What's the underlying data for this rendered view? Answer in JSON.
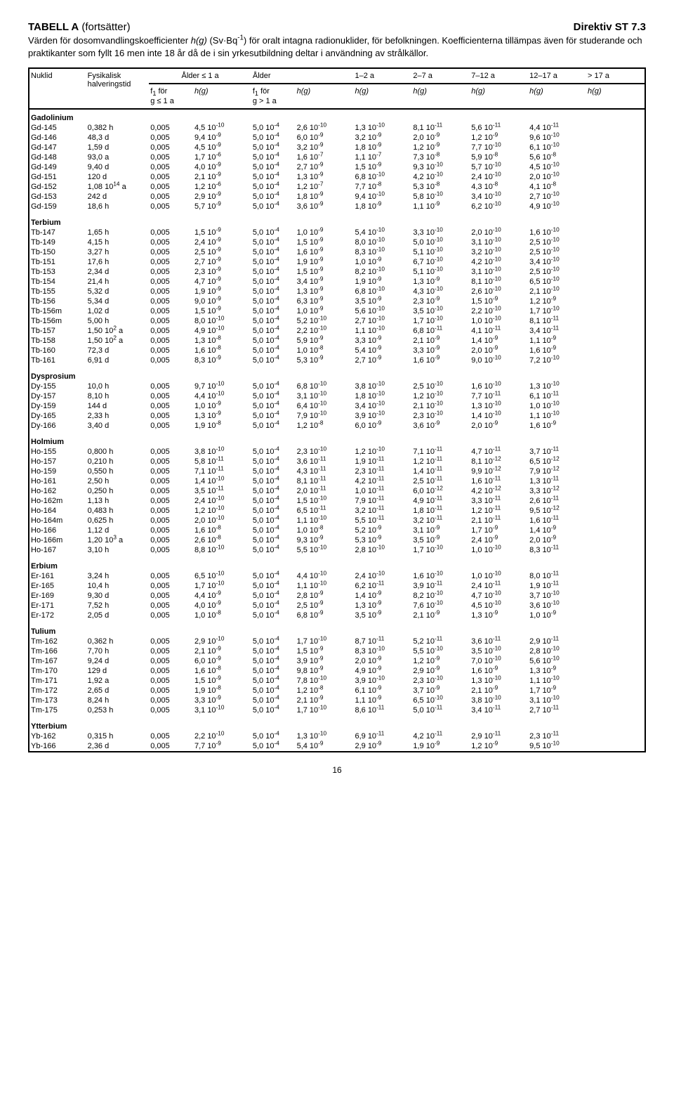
{
  "header": {
    "title_left_html": "<b>TABELL A</b> (fortsätter)",
    "title_right": "Direktiv ST 7.3",
    "intro_html": "Värden för dosomvandlingskoefficienter <i>h(g)</i> (Sv·Bq<sup>-1</sup>) för oralt intagna radionuklider, för befolkningen. Koefficienterna tillämpas även för studerande och praktikanter som fyllt 16 men inte 18 år då de i sin yrkesutbildning deltar i användning av strålkällor."
  },
  "table": {
    "head": {
      "nuklid": "Nuklid",
      "halflife_html": "Fysikalisk<br>halveringstid",
      "age_le1": "Ålder ≤ 1 a",
      "age_gt1": "Ålder",
      "r12": "1–2 a",
      "r27": "2–7 a",
      "r712": "7–12 a",
      "r1217": "12–17 a",
      "rgt17": "> 17 a",
      "f1_le1_html": "f<sub>1</sub> för<br>g ≤ 1 a",
      "f1_gt1_html": "f<sub>1</sub> för<br>g > 1 a",
      "hg_html": "<i>h(g)</i>"
    },
    "groups": [
      {
        "name": "Gadolinium",
        "rows": [
          [
            "Gd-145",
            "0,382 h",
            "0,005",
            "4,5 10<sup>-10</sup>",
            "5,0 10<sup>-4</sup>",
            "2,6 10<sup>-10</sup>",
            "1,3 10<sup>-10</sup>",
            "8,1 10<sup>-11</sup>",
            "5,6 10<sup>-11</sup>",
            "4,4 10<sup>-11</sup>"
          ],
          [
            "Gd-146",
            "48,3 d",
            "0,005",
            "9,4 10<sup>-9</sup>",
            "5,0 10<sup>-4</sup>",
            "6,0 10<sup>-9</sup>",
            "3,2 10<sup>-9</sup>",
            "2,0 10<sup>-9</sup>",
            "1,2 10<sup>-9</sup>",
            "9,6 10<sup>-10</sup>"
          ],
          [
            "Gd-147",
            "1,59 d",
            "0,005",
            "4,5 10<sup>-9</sup>",
            "5,0 10<sup>-4</sup>",
            "3,2 10<sup>-9</sup>",
            "1,8 10<sup>-9</sup>",
            "1,2 10<sup>-9</sup>",
            "7,7 10<sup>-10</sup>",
            "6,1 10<sup>-10</sup>"
          ],
          [
            "Gd-148",
            "93,0 a",
            "0,005",
            "1,7 10<sup>-6</sup>",
            "5,0 10<sup>-4</sup>",
            "1,6 10<sup>-7</sup>",
            "1,1 10<sup>-7</sup>",
            "7,3 10<sup>-8</sup>",
            "5,9 10<sup>-8</sup>",
            "5,6 10<sup>-8</sup>"
          ],
          [
            "Gd-149",
            "9,40 d",
            "0,005",
            "4,0 10<sup>-9</sup>",
            "5,0 10<sup>-4</sup>",
            "2,7 10<sup>-9</sup>",
            "1,5 10<sup>-9</sup>",
            "9,3 10<sup>-10</sup>",
            "5,7 10<sup>-10</sup>",
            "4,5 10<sup>-10</sup>"
          ],
          [
            "Gd-151",
            "120 d",
            "0,005",
            "2,1 10<sup>-9</sup>",
            "5,0 10<sup>-4</sup>",
            "1,3 10<sup>-9</sup>",
            "6,8 10<sup>-10</sup>",
            "4,2 10<sup>-10</sup>",
            "2,4 10<sup>-10</sup>",
            "2,0 10<sup>-10</sup>"
          ],
          [
            "Gd-152",
            "1,08 10<sup>14</sup> a",
            "0,005",
            "1,2 10<sup>-6</sup>",
            "5,0 10<sup>-4</sup>",
            "1,2 10<sup>-7</sup>",
            "7,7 10<sup>-8</sup>",
            "5,3 10<sup>-8</sup>",
            "4,3 10<sup>-8</sup>",
            "4,1 10<sup>-8</sup>"
          ],
          [
            "Gd-153",
            "242 d",
            "0,005",
            "2,9 10<sup>-9</sup>",
            "5,0 10<sup>-4</sup>",
            "1,8 10<sup>-9</sup>",
            "9,4 10<sup>-10</sup>",
            "5,8 10<sup>-10</sup>",
            "3,4 10<sup>-10</sup>",
            "2,7 10<sup>-10</sup>"
          ],
          [
            "Gd-159",
            "18,6 h",
            "0,005",
            "5,7 10<sup>-9</sup>",
            "5,0 10<sup>-4</sup>",
            "3,6 10<sup>-9</sup>",
            "1,8 10<sup>-9</sup>",
            "1,1 10<sup>-9</sup>",
            "6,2 10<sup>-10</sup>",
            "4,9 10<sup>-10</sup>"
          ]
        ]
      },
      {
        "name": "Terbium",
        "rows": [
          [
            "Tb-147",
            "1,65 h",
            "0,005",
            "1,5 10<sup>-9</sup>",
            "5,0 10<sup>-4</sup>",
            "1,0 10<sup>-9</sup>",
            "5,4 10<sup>-10</sup>",
            "3,3 10<sup>-10</sup>",
            "2,0 10<sup>-10</sup>",
            "1,6 10<sup>-10</sup>"
          ],
          [
            "Tb-149",
            "4,15 h",
            "0,005",
            "2,4 10<sup>-9</sup>",
            "5,0 10<sup>-4</sup>",
            "1,5 10<sup>-9</sup>",
            "8,0 10<sup>-10</sup>",
            "5,0 10<sup>-10</sup>",
            "3,1 10<sup>-10</sup>",
            "2,5 10<sup>-10</sup>"
          ],
          [
            "Tb-150",
            "3,27 h",
            "0,005",
            "2,5 10<sup>-9</sup>",
            "5,0 10<sup>-4</sup>",
            "1,6 10<sup>-9</sup>",
            "8,3 10<sup>-10</sup>",
            "5,1 10<sup>-10</sup>",
            "3,2 10<sup>-10</sup>",
            "2,5 10<sup>-10</sup>"
          ],
          [
            "Tb-151",
            "17,6 h",
            "0,005",
            "2,7 10<sup>-9</sup>",
            "5,0 10<sup>-4</sup>",
            "1,9 10<sup>-9</sup>",
            "1,0 10<sup>-9</sup>",
            "6,7 10<sup>-10</sup>",
            "4,2 10<sup>-10</sup>",
            "3,4 10<sup>-10</sup>"
          ],
          [
            "Tb-153",
            "2,34 d",
            "0,005",
            "2,3 10<sup>-9</sup>",
            "5,0 10<sup>-4</sup>",
            "1,5 10<sup>-9</sup>",
            "8,2 10<sup>-10</sup>",
            "5,1 10<sup>-10</sup>",
            "3,1 10<sup>-10</sup>",
            "2,5 10<sup>-10</sup>"
          ],
          [
            "Tb-154",
            "21,4 h",
            "0,005",
            "4,7 10<sup>-9</sup>",
            "5,0 10<sup>-4</sup>",
            "3,4 10<sup>-9</sup>",
            "1,9 10<sup>-9</sup>",
            "1,3 10<sup>-9</sup>",
            "8,1 10<sup>-10</sup>",
            "6,5 10<sup>-10</sup>"
          ],
          [
            "Tb-155",
            "5,32 d",
            "0,005",
            "1,9 10<sup>-9</sup>",
            "5,0 10<sup>-4</sup>",
            "1,3 10<sup>-9</sup>",
            "6,8 10<sup>-10</sup>",
            "4,3 10<sup>-10</sup>",
            "2,6 10<sup>-10</sup>",
            "2,1 10<sup>-10</sup>"
          ],
          [
            "Tb-156",
            "5,34 d",
            "0,005",
            "9,0 10<sup>-9</sup>",
            "5,0 10<sup>-4</sup>",
            "6,3 10<sup>-9</sup>",
            "3,5 10<sup>-9</sup>",
            "2,3 10<sup>-9</sup>",
            "1,5 10<sup>-9</sup>",
            "1,2 10<sup>-9</sup>"
          ],
          [
            "Tb-156m",
            "1,02 d",
            "0,005",
            "1,5 10<sup>-9</sup>",
            "5,0 10<sup>-4</sup>",
            "1,0 10<sup>-9</sup>",
            "5,6 10<sup>-10</sup>",
            "3,5 10<sup>-10</sup>",
            "2,2 10<sup>-10</sup>",
            "1,7 10<sup>-10</sup>"
          ],
          [
            "Tb-156m",
            "5,00 h",
            "0,005",
            "8,0 10<sup>-10</sup>",
            "5,0 10<sup>-4</sup>",
            "5,2 10<sup>-10</sup>",
            "2,7 10<sup>-10</sup>",
            "1,7 10<sup>-10</sup>",
            "1,0 10<sup>-10</sup>",
            "8,1 10<sup>-11</sup>"
          ],
          [
            "Tb-157",
            "1,50 10<sup>2</sup> a",
            "0,005",
            "4,9 10<sup>-10</sup>",
            "5,0 10<sup>-4</sup>",
            "2,2 10<sup>-10</sup>",
            "1,1 10<sup>-10</sup>",
            "6,8 10<sup>-11</sup>",
            "4,1 10<sup>-11</sup>",
            "3,4 10<sup>-11</sup>"
          ],
          [
            "Tb-158",
            "1,50 10<sup>2</sup> a",
            "0,005",
            "1,3 10<sup>-8</sup>",
            "5,0 10<sup>-4</sup>",
            "5,9 10<sup>-9</sup>",
            "3,3 10<sup>-9</sup>",
            "2,1 10<sup>-9</sup>",
            "1,4 10<sup>-9</sup>",
            "1,1 10<sup>-9</sup>"
          ],
          [
            "Tb-160",
            "72,3 d",
            "0,005",
            "1,6 10<sup>-8</sup>",
            "5,0 10<sup>-4</sup>",
            "1,0 10<sup>-8</sup>",
            "5,4 10<sup>-9</sup>",
            "3,3 10<sup>-9</sup>",
            "2,0 10<sup>-9</sup>",
            "1,6 10<sup>-9</sup>"
          ],
          [
            "Tb-161",
            "6,91 d",
            "0,005",
            "8,3 10<sup>-9</sup>",
            "5,0 10<sup>-4</sup>",
            "5,3 10<sup>-9</sup>",
            "2,7 10<sup>-9</sup>",
            "1,6 10<sup>-9</sup>",
            "9,0 10<sup>-10</sup>",
            "7,2 10<sup>-10</sup>"
          ]
        ]
      },
      {
        "name": "Dysprosium",
        "rows": [
          [
            "Dy-155",
            "10,0 h",
            "0,005",
            "9,7 10<sup>-10</sup>",
            "5,0 10<sup>-4</sup>",
            "6,8 10<sup>-10</sup>",
            "3,8 10<sup>-10</sup>",
            "2,5 10<sup>-10</sup>",
            "1,6 10<sup>-10</sup>",
            "1,3 10<sup>-10</sup>"
          ],
          [
            "Dy-157",
            "8,10 h",
            "0,005",
            "4,4 10<sup>-10</sup>",
            "5,0 10<sup>-4</sup>",
            "3,1 10<sup>-10</sup>",
            "1,8 10<sup>-10</sup>",
            "1,2 10<sup>-10</sup>",
            "7,7 10<sup>-11</sup>",
            "6,1 10<sup>-11</sup>"
          ],
          [
            "Dy-159",
            "144 d",
            "0,005",
            "1,0 10<sup>-9</sup>",
            "5,0 10<sup>-4</sup>",
            "6,4 10<sup>-10</sup>",
            "3,4 10<sup>-10</sup>",
            "2,1 10<sup>-10</sup>",
            "1,3 10<sup>-10</sup>",
            "1,0 10<sup>-10</sup>"
          ],
          [
            "Dy-165",
            "2,33 h",
            "0,005",
            "1,3 10<sup>-9</sup>",
            "5,0 10<sup>-4</sup>",
            "7,9 10<sup>-10</sup>",
            "3,9 10<sup>-10</sup>",
            "2,3 10<sup>-10</sup>",
            "1,4 10<sup>-10</sup>",
            "1,1 10<sup>-10</sup>"
          ],
          [
            "Dy-166",
            "3,40 d",
            "0,005",
            "1,9 10<sup>-8</sup>",
            "5,0 10<sup>-4</sup>",
            "1,2 10<sup>-8</sup>",
            "6,0 10<sup>-9</sup>",
            "3,6 10<sup>-9</sup>",
            "2,0 10<sup>-9</sup>",
            "1,6 10<sup>-9</sup>"
          ]
        ]
      },
      {
        "name": "Holmium",
        "rows": [
          [
            "Ho-155",
            "0,800 h",
            "0,005",
            "3,8 10<sup>-10</sup>",
            "5,0 10<sup>-4</sup>",
            "2,3 10<sup>-10</sup>",
            "1,2 10<sup>-10</sup>",
            "7,1 10<sup>-11</sup>",
            "4,7 10<sup>-11</sup>",
            "3,7 10<sup>-11</sup>"
          ],
          [
            "Ho-157",
            "0,210 h",
            "0,005",
            "5,8 10<sup>-11</sup>",
            "5,0 10<sup>-4</sup>",
            "3,6 10<sup>-11</sup>",
            "1,9 10<sup>-11</sup>",
            "1,2 10<sup>-11</sup>",
            "8,1 10<sup>-12</sup>",
            "6,5 10<sup>-12</sup>"
          ],
          [
            "Ho-159",
            "0,550 h",
            "0,005",
            "7,1 10<sup>-11</sup>",
            "5,0 10<sup>-4</sup>",
            "4,3 10<sup>-11</sup>",
            "2,3 10<sup>-11</sup>",
            "1,4 10<sup>-11</sup>",
            "9,9 10<sup>-12</sup>",
            "7,9 10<sup>-12</sup>"
          ],
          [
            "Ho-161",
            "2,50 h",
            "0,005",
            "1,4 10<sup>-10</sup>",
            "5,0 10<sup>-4</sup>",
            "8,1 10<sup>-11</sup>",
            "4,2 10<sup>-11</sup>",
            "2,5 10<sup>-11</sup>",
            "1,6 10<sup>-11</sup>",
            "1,3 10<sup>-11</sup>"
          ],
          [
            "Ho-162",
            "0,250 h",
            "0,005",
            "3,5 10<sup>-11</sup>",
            "5,0 10<sup>-4</sup>",
            "2,0 10<sup>-11</sup>",
            "1,0 10<sup>-11</sup>",
            "6,0 10<sup>-12</sup>",
            "4,2 10<sup>-12</sup>",
            "3,3 10<sup>-12</sup>"
          ],
          [
            "Ho-162m",
            "1,13 h",
            "0,005",
            "2,4 10<sup>-10</sup>",
            "5,0 10<sup>-4</sup>",
            "1,5 10<sup>-10</sup>",
            "7,9 10<sup>-11</sup>",
            "4,9 10<sup>-11</sup>",
            "3,3 10<sup>-11</sup>",
            "2,6 10<sup>-11</sup>"
          ],
          [
            "Ho-164",
            "0,483 h",
            "0,005",
            "1,2 10<sup>-10</sup>",
            "5,0 10<sup>-4</sup>",
            "6,5 10<sup>-11</sup>",
            "3,2 10<sup>-11</sup>",
            "1,8 10<sup>-11</sup>",
            "1,2 10<sup>-11</sup>",
            "9,5 10<sup>-12</sup>"
          ],
          [
            "Ho-164m",
            "0,625 h",
            "0,005",
            "2,0 10<sup>-10</sup>",
            "5,0 10<sup>-4</sup>",
            "1,1 10<sup>-10</sup>",
            "5,5 10<sup>-11</sup>",
            "3,2 10<sup>-11</sup>",
            "2,1 10<sup>-11</sup>",
            "1,6 10<sup>-11</sup>"
          ],
          [
            "Ho-166",
            "1,12 d",
            "0,005",
            "1,6 10<sup>-8</sup>",
            "5,0 10<sup>-4</sup>",
            "1,0 10<sup>-8</sup>",
            "5,2 10<sup>-9</sup>",
            "3,1 10<sup>-9</sup>",
            "1,7 10<sup>-9</sup>",
            "1,4 10<sup>-9</sup>"
          ],
          [
            "Ho-166m",
            "1,20 10<sup>3</sup> a",
            "0,005",
            "2,6 10<sup>-8</sup>",
            "5,0 10<sup>-4</sup>",
            "9,3 10<sup>-9</sup>",
            "5,3 10<sup>-9</sup>",
            "3,5 10<sup>-9</sup>",
            "2,4 10<sup>-9</sup>",
            "2,0 10<sup>-9</sup>"
          ],
          [
            "Ho-167",
            "3,10 h",
            "0,005",
            "8,8 10<sup>-10</sup>",
            "5,0 10<sup>-4</sup>",
            "5,5 10<sup>-10</sup>",
            "2,8 10<sup>-10</sup>",
            "1,7 10<sup>-10</sup>",
            "1,0 10<sup>-10</sup>",
            "8,3 10<sup>-11</sup>"
          ]
        ]
      },
      {
        "name": "Erbium",
        "rows": [
          [
            "Er-161",
            "3,24 h",
            "0,005",
            "6,5 10<sup>-10</sup>",
            "5,0 10<sup>-4</sup>",
            "4,4 10<sup>-10</sup>",
            "2,4 10<sup>-10</sup>",
            "1,6 10<sup>-10</sup>",
            "1,0 10<sup>-10</sup>",
            "8,0 10<sup>-11</sup>"
          ],
          [
            "Er-165",
            "10,4 h",
            "0,005",
            "1,7 10<sup>-10</sup>",
            "5,0 10<sup>-4</sup>",
            "1,1 10<sup>-10</sup>",
            "6,2 10<sup>-11</sup>",
            "3,9 10<sup>-11</sup>",
            "2,4 10<sup>-11</sup>",
            "1,9 10<sup>-11</sup>"
          ],
          [
            "Er-169",
            "9,30 d",
            "0,005",
            "4,4 10<sup>-9</sup>",
            "5,0 10<sup>-4</sup>",
            "2,8 10<sup>-9</sup>",
            "1,4 10<sup>-9</sup>",
            "8,2 10<sup>-10</sup>",
            "4,7 10<sup>-10</sup>",
            "3,7 10<sup>-10</sup>"
          ],
          [
            "Er-171",
            "7,52 h",
            "0,005",
            "4,0 10<sup>-9</sup>",
            "5,0 10<sup>-4</sup>",
            "2,5 10<sup>-9</sup>",
            "1,3 10<sup>-9</sup>",
            "7,6 10<sup>-10</sup>",
            "4,5 10<sup>-10</sup>",
            "3,6 10<sup>-10</sup>"
          ],
          [
            "Er-172",
            "2,05 d",
            "0,005",
            "1,0 10<sup>-8</sup>",
            "5,0 10<sup>-4</sup>",
            "6,8 10<sup>-9</sup>",
            "3,5 10<sup>-9</sup>",
            "2,1 10<sup>-9</sup>",
            "1,3 10<sup>-9</sup>",
            "1,0 10<sup>-9</sup>"
          ]
        ]
      },
      {
        "name": "Tulium",
        "rows": [
          [
            "Tm-162",
            "0,362 h",
            "0,005",
            "2,9 10<sup>-10</sup>",
            "5,0 10<sup>-4</sup>",
            "1,7 10<sup>-10</sup>",
            "8,7 10<sup>-11</sup>",
            "5,2 10<sup>-11</sup>",
            "3,6 10<sup>-11</sup>",
            "2,9 10<sup>-11</sup>"
          ],
          [
            "Tm-166",
            "7,70 h",
            "0,005",
            "2,1 10<sup>-9</sup>",
            "5,0 10<sup>-4</sup>",
            "1,5 10<sup>-9</sup>",
            "8,3 10<sup>-10</sup>",
            "5,5 10<sup>-10</sup>",
            "3,5 10<sup>-10</sup>",
            "2,8 10<sup>-10</sup>"
          ],
          [
            "Tm-167",
            "9,24 d",
            "0,005",
            "6,0 10<sup>-9</sup>",
            "5,0 10<sup>-4</sup>",
            "3,9 10<sup>-9</sup>",
            "2,0 10<sup>-9</sup>",
            "1,2 10<sup>-9</sup>",
            "7,0 10<sup>-10</sup>",
            "5,6 10<sup>-10</sup>"
          ],
          [
            "Tm-170",
            "129 d",
            "0,005",
            "1,6 10<sup>-8</sup>",
            "5,0 10<sup>-4</sup>",
            "9,8 10<sup>-9</sup>",
            "4,9 10<sup>-9</sup>",
            "2,9 10<sup>-9</sup>",
            "1,6 10<sup>-9</sup>",
            "1,3 10<sup>-9</sup>"
          ],
          [
            "Tm-171",
            "1,92 a",
            "0,005",
            "1,5 10<sup>-9</sup>",
            "5,0 10<sup>-4</sup>",
            "7,8 10<sup>-10</sup>",
            "3,9 10<sup>-10</sup>",
            "2,3 10<sup>-10</sup>",
            "1,3 10<sup>-10</sup>",
            "1,1 10<sup>-10</sup>"
          ],
          [
            "Tm-172",
            "2,65 d",
            "0,005",
            "1,9 10<sup>-8</sup>",
            "5,0 10<sup>-4</sup>",
            "1,2 10<sup>-8</sup>",
            "6,1 10<sup>-9</sup>",
            "3,7 10<sup>-9</sup>",
            "2,1 10<sup>-9</sup>",
            "1,7 10<sup>-9</sup>"
          ],
          [
            "Tm-173",
            "8,24 h",
            "0,005",
            "3,3 10<sup>-9</sup>",
            "5,0 10<sup>-4</sup>",
            "2,1 10<sup>-9</sup>",
            "1,1 10<sup>-9</sup>",
            "6,5 10<sup>-10</sup>",
            "3,8 10<sup>-10</sup>",
            "3,1 10<sup>-10</sup>"
          ],
          [
            "Tm-175",
            "0,253 h",
            "0,005",
            "3,1 10<sup>-10</sup>",
            "5,0 10<sup>-4</sup>",
            "1,7 10<sup>-10</sup>",
            "8,6 10<sup>-11</sup>",
            "5,0 10<sup>-11</sup>",
            "3,4 10<sup>-11</sup>",
            "2,7 10<sup>-11</sup>"
          ]
        ]
      },
      {
        "name": "Ytterbium",
        "rows": [
          [
            "Yb-162",
            "0,315 h",
            "0,005",
            "2,2 10<sup>-10</sup>",
            "5,0 10<sup>-4</sup>",
            "1,3 10<sup>-10</sup>",
            "6,9 10<sup>-11</sup>",
            "4,2 10<sup>-11</sup>",
            "2,9 10<sup>-11</sup>",
            "2,3 10<sup>-11</sup>"
          ],
          [
            "Yb-166",
            "2,36 d",
            "0,005",
            "7,7 10<sup>-9</sup>",
            "5,0 10<sup>-4</sup>",
            "5,4 10<sup>-9</sup>",
            "2,9 10<sup>-9</sup>",
            "1,9 10<sup>-9</sup>",
            "1,2 10<sup>-9</sup>",
            "9,5 10<sup>-10</sup>"
          ]
        ]
      }
    ]
  },
  "page_number": "16"
}
